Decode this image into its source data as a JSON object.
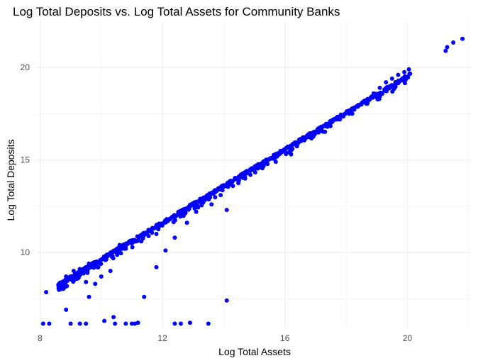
{
  "chart_data": {
    "type": "scatter",
    "title": "Log Total Deposits vs. Log Total Assets for Community Banks",
    "xlabel": "Log Total Assets",
    "ylabel": "Log Total Deposits",
    "xlim": [
      7.85,
      22.1
    ],
    "ylim": [
      5.9,
      22.5
    ],
    "x_ticks": [
      8,
      12,
      16,
      20
    ],
    "y_ticks": [
      10,
      15,
      20
    ],
    "grid": true,
    "legend": "none",
    "point_color": "#0000ff",
    "trend": {
      "x_start": 8.6,
      "x_end": 20.1,
      "slope": 0.99,
      "intercept": -0.2,
      "spread": 0.12
    },
    "points": [
      {
        "x": 8.2,
        "y": 7.85
      },
      {
        "x": 8.1,
        "y": 6.15
      },
      {
        "x": 8.3,
        "y": 6.15
      },
      {
        "x": 8.85,
        "y": 6.9
      },
      {
        "x": 9.0,
        "y": 6.15
      },
      {
        "x": 9.3,
        "y": 6.15
      },
      {
        "x": 9.5,
        "y": 6.15
      },
      {
        "x": 9.6,
        "y": 7.6
      },
      {
        "x": 10.1,
        "y": 6.3
      },
      {
        "x": 10.4,
        "y": 6.5
      },
      {
        "x": 10.45,
        "y": 6.15
      },
      {
        "x": 10.8,
        "y": 6.15
      },
      {
        "x": 11.0,
        "y": 6.15
      },
      {
        "x": 11.1,
        "y": 6.15
      },
      {
        "x": 11.2,
        "y": 6.2
      },
      {
        "x": 11.4,
        "y": 7.6
      },
      {
        "x": 12.4,
        "y": 6.15
      },
      {
        "x": 12.6,
        "y": 6.15
      },
      {
        "x": 12.9,
        "y": 6.2
      },
      {
        "x": 13.5,
        "y": 6.15
      },
      {
        "x": 14.1,
        "y": 7.4
      },
      {
        "x": 11.8,
        "y": 9.2
      },
      {
        "x": 12.1,
        "y": 10.1
      },
      {
        "x": 12.4,
        "y": 10.8
      },
      {
        "x": 10.6,
        "y": 10.4
      },
      {
        "x": 10.3,
        "y": 9.0
      },
      {
        "x": 10.0,
        "y": 8.7
      },
      {
        "x": 9.8,
        "y": 8.3
      },
      {
        "x": 9.5,
        "y": 8.4
      },
      {
        "x": 9.9,
        "y": 9.2
      },
      {
        "x": 8.85,
        "y": 8.7
      },
      {
        "x": 8.95,
        "y": 8.65
      },
      {
        "x": 9.1,
        "y": 9.0
      },
      {
        "x": 9.3,
        "y": 9.1
      },
      {
        "x": 9.6,
        "y": 9.4
      },
      {
        "x": 10.8,
        "y": 10.2
      },
      {
        "x": 11.3,
        "y": 10.6
      },
      {
        "x": 11.8,
        "y": 11.0
      },
      {
        "x": 12.8,
        "y": 11.6
      },
      {
        "x": 13.1,
        "y": 12.2
      },
      {
        "x": 13.3,
        "y": 12.9
      },
      {
        "x": 13.6,
        "y": 12.6
      },
      {
        "x": 13.9,
        "y": 13.1
      },
      {
        "x": 14.1,
        "y": 12.3
      },
      {
        "x": 14.3,
        "y": 13.6
      },
      {
        "x": 14.5,
        "y": 13.9
      },
      {
        "x": 14.7,
        "y": 14.0
      },
      {
        "x": 15.0,
        "y": 14.5
      },
      {
        "x": 15.3,
        "y": 14.7
      },
      {
        "x": 15.7,
        "y": 14.9
      },
      {
        "x": 16.0,
        "y": 15.5
      },
      {
        "x": 16.2,
        "y": 15.3
      },
      {
        "x": 16.6,
        "y": 16.2
      },
      {
        "x": 17.2,
        "y": 16.6
      },
      {
        "x": 17.8,
        "y": 17.2
      },
      {
        "x": 18.1,
        "y": 17.5
      },
      {
        "x": 18.2,
        "y": 17.5
      },
      {
        "x": 18.5,
        "y": 18.0
      },
      {
        "x": 18.7,
        "y": 18.3
      },
      {
        "x": 18.9,
        "y": 18.6
      },
      {
        "x": 19.1,
        "y": 18.9
      },
      {
        "x": 19.3,
        "y": 19.2
      },
      {
        "x": 19.5,
        "y": 19.4
      },
      {
        "x": 19.7,
        "y": 19.6
      },
      {
        "x": 19.9,
        "y": 19.75
      },
      {
        "x": 20.05,
        "y": 19.9
      },
      {
        "x": 21.25,
        "y": 20.9
      },
      {
        "x": 21.3,
        "y": 21.1
      },
      {
        "x": 21.5,
        "y": 21.35
      },
      {
        "x": 21.8,
        "y": 21.55
      }
    ]
  }
}
